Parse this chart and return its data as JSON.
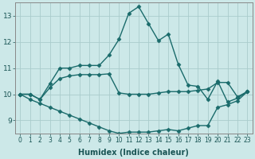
{
  "xlabel": "Humidex (Indice chaleur)",
  "background_color": "#cce8e8",
  "grid_color": "#aacccc",
  "line_color": "#1a6b6b",
  "line1_x": [
    0,
    1,
    2,
    3,
    4,
    5,
    6,
    7,
    8,
    9,
    10,
    11,
    12,
    13,
    14,
    15,
    16,
    17,
    18,
    19,
    20,
    21,
    22,
    23
  ],
  "line1_y": [
    10.0,
    10.0,
    9.8,
    10.4,
    11.0,
    11.0,
    11.1,
    11.1,
    11.1,
    11.5,
    12.1,
    13.1,
    13.35,
    12.7,
    12.05,
    12.3,
    11.15,
    10.35,
    10.3,
    9.8,
    10.5,
    9.7,
    9.85,
    10.1
  ],
  "line2_x": [
    0,
    1,
    2,
    3,
    4,
    5,
    6,
    7,
    8,
    9,
    10,
    11,
    12,
    13,
    14,
    15,
    16,
    17,
    18,
    19,
    20,
    21,
    22,
    23
  ],
  "line2_y": [
    10.0,
    10.0,
    9.8,
    10.25,
    10.6,
    10.7,
    10.75,
    10.75,
    10.75,
    10.78,
    10.05,
    10.0,
    10.0,
    10.0,
    10.05,
    10.1,
    10.1,
    10.1,
    10.15,
    10.2,
    10.45,
    10.45,
    9.9,
    10.1
  ],
  "line3_x": [
    0,
    1,
    2,
    3,
    4,
    5,
    6,
    7,
    8,
    9,
    10,
    11,
    12,
    13,
    14,
    15,
    16,
    17,
    18,
    19,
    20,
    21,
    22,
    23
  ],
  "line3_y": [
    10.0,
    9.8,
    9.65,
    9.5,
    9.35,
    9.2,
    9.05,
    8.9,
    8.75,
    8.6,
    8.5,
    8.55,
    8.55,
    8.55,
    8.6,
    8.65,
    8.6,
    8.7,
    8.8,
    8.8,
    9.5,
    9.6,
    9.75,
    10.1
  ],
  "ylim": [
    8.5,
    13.5
  ],
  "yticks": [
    9,
    10,
    11,
    12,
    13
  ],
  "xticks": [
    0,
    1,
    2,
    3,
    4,
    5,
    6,
    7,
    8,
    9,
    10,
    11,
    12,
    13,
    14,
    15,
    16,
    17,
    18,
    19,
    20,
    21,
    22,
    23
  ],
  "marker": "D",
  "marker_size": 2.5,
  "line_width": 1.0
}
